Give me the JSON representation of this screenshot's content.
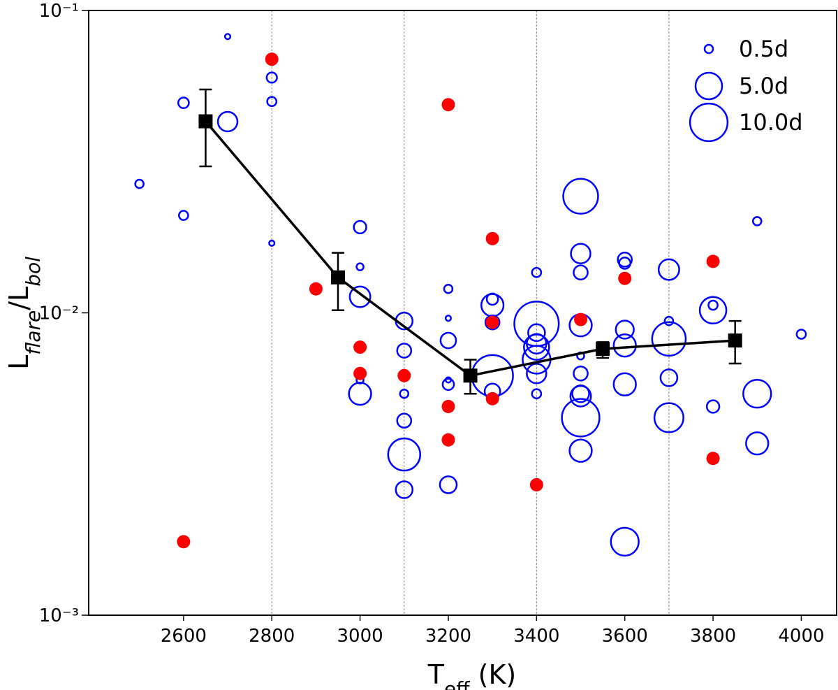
{
  "chart_data": {
    "type": "bubble-scatter",
    "xlabel": [
      "T",
      "eff",
      " (K)"
    ],
    "ylabel": [
      "L",
      "flare",
      "/L",
      "bol"
    ],
    "xlim": [
      2385,
      4080
    ],
    "ylim": [
      0.001,
      0.1
    ],
    "log_y": true,
    "xticks": [
      2600,
      2800,
      3000,
      3200,
      3400,
      3600,
      3800,
      4000
    ],
    "yticks": [
      {
        "value": 0.001,
        "label": "10⁻³"
      },
      {
        "value": 0.01,
        "label": "10⁻²"
      },
      {
        "value": 0.1,
        "label": "10⁻¹"
      }
    ],
    "vlines": [
      2800,
      3100,
      3400,
      3700
    ],
    "series": [
      {
        "color": "#0000ff",
        "filled": false,
        "x": [
          2500,
          2700,
          2800,
          2800,
          2800,
          2600,
          2600,
          2700,
          3000,
          3000,
          3000,
          3000,
          3000,
          3100,
          3100,
          3100,
          3100,
          3100,
          3100,
          3200,
          3200,
          3200,
          3200,
          3200,
          3200,
          3300,
          3300,
          3300,
          3300,
          3300,
          3400,
          3400,
          3400,
          3400,
          3400,
          3400,
          3400,
          3400,
          3500,
          3500,
          3500,
          3500,
          3500,
          3500,
          3500,
          3500,
          3500,
          3500,
          3600,
          3600,
          3600,
          3600,
          3600,
          3600,
          3700,
          3700,
          3700,
          3700,
          3700,
          3800,
          3800,
          3800,
          3900,
          3900,
          3900,
          4000
        ],
        "y": [
          0.0267,
          0.082,
          0.06,
          0.05,
          0.017,
          0.0495,
          0.021,
          0.0429,
          0.0192,
          0.0142,
          0.0113,
          0.006,
          0.0054,
          0.0094,
          0.0075,
          0.0054,
          0.0044,
          0.0034,
          0.0026,
          0.012,
          0.0096,
          0.0081,
          0.006,
          0.0058,
          0.0027,
          0.0106,
          0.0111,
          0.0093,
          0.0062,
          0.0055,
          0.0136,
          0.0092,
          0.0086,
          0.0079,
          0.0077,
          0.007,
          0.0063,
          0.0054,
          0.0243,
          0.0157,
          0.0136,
          0.0091,
          0.0072,
          0.0063,
          0.0054,
          0.0053,
          0.0045,
          0.0035,
          0.015,
          0.0146,
          0.0088,
          0.0078,
          0.0058,
          0.00175,
          0.0139,
          0.0094,
          0.0082,
          0.0061,
          0.0045,
          0.0102,
          0.0106,
          0.0049,
          0.0201,
          0.0054,
          0.0037,
          0.0085
        ],
        "size": [
          0.5,
          0.2,
          0.75,
          0.6,
          0.2,
          0.8,
          0.6,
          2.7,
          1.1,
          0.35,
          3,
          0.35,
          3.5,
          2,
          1.4,
          0.5,
          1.4,
          7.3,
          2,
          0.5,
          0.2,
          1.7,
          0.2,
          0.9,
          2,
          3.5,
          0.9,
          1.4,
          12,
          1.7,
          0.6,
          14,
          2,
          2.7,
          4.5,
          5.5,
          2.7,
          0.6,
          8.6,
          2.7,
          1.4,
          3.5,
          0.35,
          1.4,
          2,
          3,
          10,
          3.5,
          1.4,
          0.9,
          2.3,
          3.5,
          3.5,
          5.5,
          3,
          0.5,
          8,
          2,
          6,
          5,
          0.6,
          1.1,
          0.5,
          5.5,
          3.5,
          0.6
        ]
      },
      {
        "color": "#ff0000",
        "filled": true,
        "x": [
          2600,
          2800,
          2900,
          3000,
          3000,
          3100,
          3200,
          3200,
          3200,
          3300,
          3300,
          3300,
          3400,
          3500,
          3600,
          3800,
          3800
        ],
        "y": [
          0.00175,
          0.069,
          0.012,
          0.0077,
          0.0063,
          0.0062,
          0.0488,
          0.0049,
          0.0038,
          0.0176,
          0.0093,
          0.0052,
          0.0027,
          0.0095,
          0.013,
          0.0148,
          0.0033
        ]
      }
    ],
    "binned": {
      "color": "#000000",
      "x": [
        2650,
        2950,
        3250,
        3550,
        3850
      ],
      "values": [
        0.043,
        0.0131,
        0.0062,
        0.0076,
        0.0081
      ],
      "lower": [
        0.0305,
        0.0102,
        0.0054,
        0.0071,
        0.0068
      ],
      "upper": [
        0.0548,
        0.0158,
        0.007,
        0.008,
        0.0094
      ]
    },
    "size_legend": {
      "corner": "upper right",
      "entries": [
        {
          "value": 0.5,
          "label": "0.5d"
        },
        {
          "value": 5.0,
          "label": "5.0d"
        },
        {
          "value": 10.0,
          "label": "10.0d"
        }
      ]
    }
  }
}
